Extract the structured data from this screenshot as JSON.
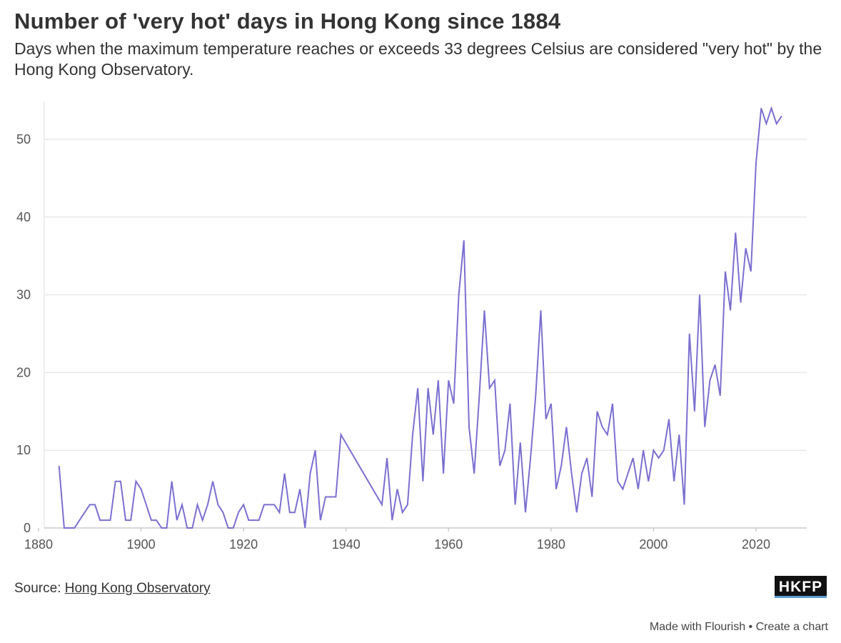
{
  "title": "Number of 'very hot' days in Hong Kong since 1884",
  "subtitle": "Days when the maximum temperature reaches or exceeds 33 degrees Celsius are considered \"very hot\" by the Hong Kong Observatory.",
  "source": {
    "label": "Source:",
    "link_text": "Hong Kong Observatory"
  },
  "logo_text": "HKFP",
  "footer": {
    "made_with": "Made with Flourish",
    "separator": "•",
    "create": "Create a chart"
  },
  "colors": {
    "line": "#7b6fd0",
    "grid": "#e8e8e8",
    "text": "#333333"
  },
  "chart_data": {
    "type": "line",
    "title": "Number of 'very hot' days in Hong Kong since 1884",
    "xlabel": "",
    "ylabel": "",
    "xlim": [
      1880,
      2030
    ],
    "ylim": [
      0,
      55
    ],
    "xticks": [
      1880,
      1900,
      1920,
      1940,
      1960,
      1980,
      2000,
      2020
    ],
    "yticks": [
      0,
      10,
      20,
      30,
      40,
      50
    ],
    "grid": true,
    "series": [
      {
        "name": "",
        "x": [
          1884,
          1885,
          1886,
          1887,
          1888,
          1889,
          1890,
          1891,
          1892,
          1893,
          1894,
          1895,
          1896,
          1897,
          1898,
          1899,
          1900,
          1901,
          1902,
          1903,
          1904,
          1905,
          1906,
          1907,
          1908,
          1909,
          1910,
          1911,
          1912,
          1913,
          1914,
          1915,
          1916,
          1917,
          1918,
          1919,
          1920,
          1921,
          1922,
          1923,
          1924,
          1925,
          1926,
          1927,
          1928,
          1929,
          1930,
          1931,
          1932,
          1933,
          1934,
          1935,
          1936,
          1937,
          1938,
          1939,
          1947,
          1948,
          1949,
          1950,
          1951,
          1952,
          1953,
          1954,
          1955,
          1956,
          1957,
          1958,
          1959,
          1960,
          1961,
          1962,
          1963,
          1964,
          1965,
          1966,
          1967,
          1968,
          1969,
          1970,
          1971,
          1972,
          1973,
          1974,
          1975,
          1976,
          1977,
          1978,
          1979,
          1980,
          1981,
          1982,
          1983,
          1984,
          1985,
          1986,
          1987,
          1988,
          1989,
          1990,
          1991,
          1992,
          1993,
          1994,
          1995,
          1996,
          1997,
          1998,
          1999,
          2000,
          2001,
          2002,
          2003,
          2004,
          2005,
          2006,
          2007,
          2008,
          2009,
          2010,
          2011,
          2012,
          2013,
          2014,
          2015,
          2016,
          2017,
          2018,
          2019,
          2020,
          2021,
          2022,
          2023,
          2024,
          2025
        ],
        "y": [
          8,
          0,
          0,
          0,
          1,
          2,
          3,
          3,
          1,
          1,
          1,
          6,
          6,
          1,
          1,
          6,
          5,
          3,
          1,
          1,
          0,
          0,
          6,
          1,
          3,
          0,
          0,
          3,
          1,
          3,
          6,
          3,
          2,
          0,
          0,
          2,
          3,
          1,
          1,
          1,
          3,
          3,
          3,
          2,
          7,
          2,
          2,
          5,
          0,
          7,
          10,
          1,
          4,
          4,
          4,
          12,
          3,
          9,
          1,
          5,
          2,
          3,
          12,
          18,
          6,
          18,
          12,
          19,
          7,
          19,
          16,
          30,
          37,
          13,
          7,
          17,
          28,
          18,
          19,
          8,
          10,
          16,
          3,
          11,
          2,
          9,
          17,
          28,
          14,
          16,
          5,
          8,
          13,
          7,
          2,
          7,
          9,
          4,
          15,
          13,
          12,
          16,
          6,
          5,
          7,
          9,
          5,
          10,
          6,
          10,
          9,
          10,
          14,
          6,
          12,
          3,
          25,
          15,
          30,
          13,
          19,
          21,
          17,
          33,
          28,
          38,
          29,
          36,
          33,
          47,
          54,
          52,
          54,
          52,
          53
        ]
      }
    ]
  }
}
